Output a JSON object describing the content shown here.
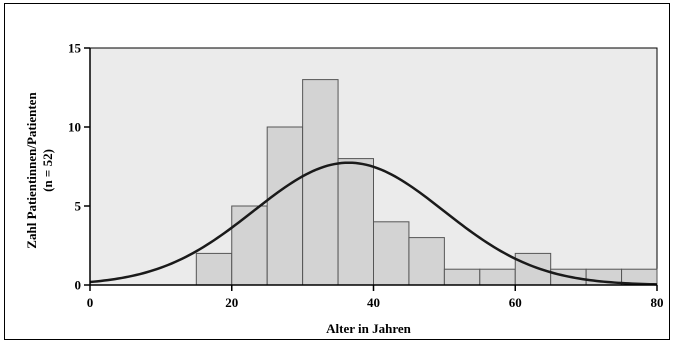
{
  "chart_data": {
    "type": "bar",
    "subtype": "histogram_with_normal_curve",
    "xlabel": "Alter in Jahren",
    "ylabel_line1": "Zahl Patientinnen/Patienten",
    "ylabel_line2": "(n = 52)",
    "xlim": [
      0,
      80
    ],
    "ylim": [
      0,
      15
    ],
    "xticks": [
      0,
      20,
      40,
      60,
      80
    ],
    "yticks": [
      0,
      5,
      10,
      15
    ],
    "bin_width": 5,
    "bins": [
      {
        "start": 15,
        "end": 20,
        "count": 2
      },
      {
        "start": 20,
        "end": 25,
        "count": 5
      },
      {
        "start": 25,
        "end": 30,
        "count": 10
      },
      {
        "start": 30,
        "end": 35,
        "count": 13
      },
      {
        "start": 35,
        "end": 40,
        "count": 8
      },
      {
        "start": 40,
        "end": 45,
        "count": 4
      },
      {
        "start": 45,
        "end": 50,
        "count": 3
      },
      {
        "start": 50,
        "end": 55,
        "count": 1
      },
      {
        "start": 55,
        "end": 60,
        "count": 1
      },
      {
        "start": 60,
        "end": 65,
        "count": 2
      },
      {
        "start": 65,
        "end": 70,
        "count": 1
      },
      {
        "start": 70,
        "end": 75,
        "count": 1
      },
      {
        "start": 75,
        "end": 80,
        "count": 1
      }
    ],
    "normal_curve": {
      "mean": 36.5,
      "sd": 13.4,
      "n": 52
    },
    "plot_background": "#ebebeb",
    "bar_fill": "#d3d3d3",
    "bar_stroke": "#555555",
    "curve_color": "#1a1a1a",
    "grid": false,
    "legend": "none"
  }
}
